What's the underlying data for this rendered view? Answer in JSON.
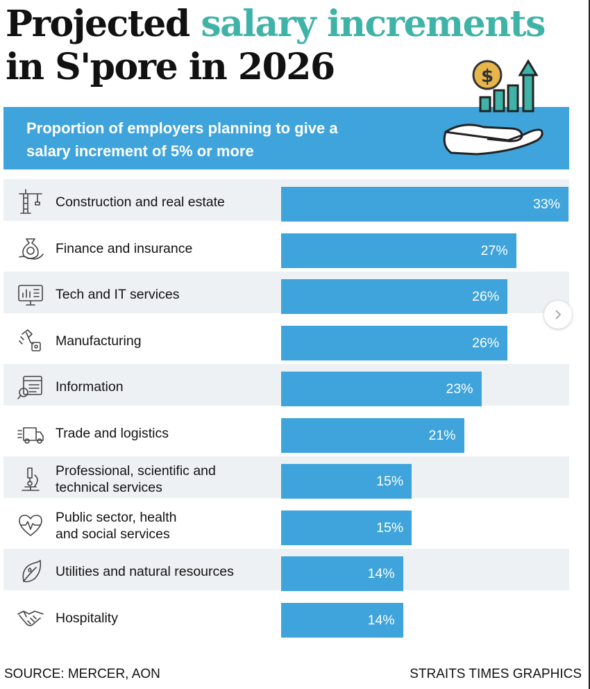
{
  "title": {
    "part1": "Projected ",
    "accent": "salary increments",
    "line2": "in S'pore in 2026"
  },
  "banner": {
    "line1": "Proportion of employers planning to give a",
    "line2": "salary increment of 5% or more"
  },
  "colors": {
    "accent_title": "#3fb3a8",
    "banner": "#3fa4db",
    "bar": "#3fa4db",
    "row_stripe": "#eef1f4"
  },
  "chart_data": {
    "type": "bar",
    "orientation": "horizontal",
    "title": "Proportion of employers planning to give a salary increment of 5% or more",
    "categories": [
      "Construction and real estate",
      "Finance and insurance",
      "Tech and IT services",
      "Manufacturing",
      "Information",
      "Trade and logistics",
      "Professional, scientific and technical services",
      "Public sector, health and social services",
      "Utilities and natural resources",
      "Hospitality"
    ],
    "label_lines": [
      [
        "Construction and real estate"
      ],
      [
        "Finance and insurance"
      ],
      [
        "Tech and IT services"
      ],
      [
        "Manufacturing"
      ],
      [
        "Information"
      ],
      [
        "Trade and logistics"
      ],
      [
        "Professional, scientific and",
        "technical services"
      ],
      [
        "Public sector, health",
        "and social services"
      ],
      [
        "Utilities and natural resources"
      ],
      [
        "Hospitality"
      ]
    ],
    "values": [
      33,
      27,
      26,
      26,
      23,
      21,
      15,
      15,
      14,
      14
    ],
    "value_labels": [
      "33%",
      "27%",
      "26%",
      "26%",
      "23%",
      "21%",
      "15%",
      "15%",
      "14%",
      "14%"
    ],
    "icons": [
      "crane-icon",
      "money-bag-hand-icon",
      "monitor-chart-icon",
      "robot-arm-icon",
      "document-search-icon",
      "delivery-truck-icon",
      "microscope-icon",
      "heart-pulse-icon",
      "leaf-icon",
      "handshake-icon"
    ],
    "unit": "%",
    "xlim": [
      0,
      33
    ],
    "xlabel": "",
    "ylabel": ""
  },
  "footer": {
    "source": "SOURCE: MERCER, AON",
    "credit": "STRAITS TIMES GRAPHICS"
  }
}
